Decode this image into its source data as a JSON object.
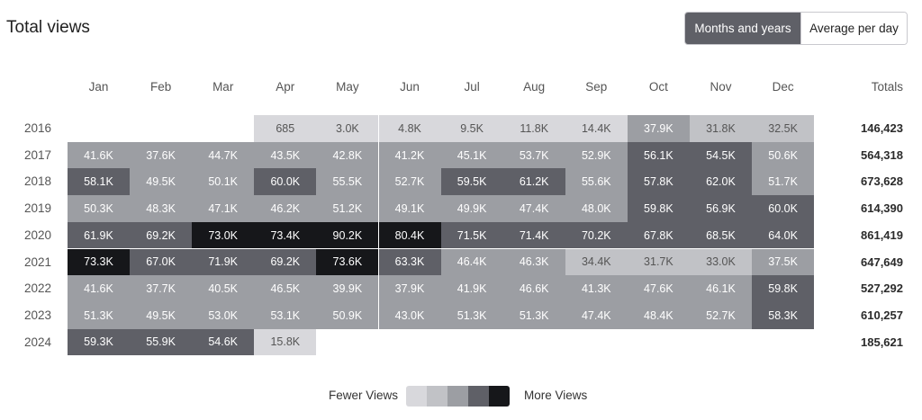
{
  "header": {
    "title": "Total views"
  },
  "toggle": {
    "active_label": "Months and years",
    "inactive_label": "Average per day"
  },
  "legend": {
    "fewer_label": "Fewer Views",
    "more_label": "More Views",
    "colors": [
      "#d8d8dc",
      "#c1c2c6",
      "#9c9ea3",
      "#5f6067",
      "#16171a"
    ]
  },
  "chart_data": {
    "type": "heatmap",
    "title": "Total views",
    "columns": [
      "Jan",
      "Feb",
      "Mar",
      "Apr",
      "May",
      "Jun",
      "Jul",
      "Aug",
      "Sep",
      "Oct",
      "Nov",
      "Dec"
    ],
    "totals_label": "Totals",
    "rows": [
      {
        "year": "2016",
        "values": [
          null,
          null,
          null,
          "685",
          "3.0K",
          "4.8K",
          "9.5K",
          "11.8K",
          "14.4K",
          "37.9K",
          "31.8K",
          "32.5K"
        ],
        "levels": [
          null,
          null,
          null,
          0,
          0,
          0,
          0,
          0,
          0,
          2,
          1,
          1
        ],
        "total": "146,423"
      },
      {
        "year": "2017",
        "values": [
          "41.6K",
          "37.6K",
          "44.7K",
          "43.5K",
          "42.8K",
          "41.2K",
          "45.1K",
          "53.7K",
          "52.9K",
          "56.1K",
          "54.5K",
          "50.6K"
        ],
        "levels": [
          2,
          2,
          2,
          2,
          2,
          2,
          2,
          2,
          2,
          3,
          3,
          2
        ],
        "total": "564,318"
      },
      {
        "year": "2018",
        "values": [
          "58.1K",
          "49.5K",
          "50.1K",
          "60.0K",
          "55.5K",
          "52.7K",
          "59.5K",
          "61.2K",
          "55.6K",
          "57.8K",
          "62.0K",
          "51.7K"
        ],
        "levels": [
          3,
          2,
          2,
          3,
          2,
          2,
          3,
          3,
          2,
          3,
          3,
          2
        ],
        "total": "673,628"
      },
      {
        "year": "2019",
        "values": [
          "50.3K",
          "48.3K",
          "47.1K",
          "46.2K",
          "51.2K",
          "49.1K",
          "49.9K",
          "47.4K",
          "48.0K",
          "59.8K",
          "56.9K",
          "60.0K"
        ],
        "levels": [
          2,
          2,
          2,
          2,
          2,
          2,
          2,
          2,
          2,
          3,
          3,
          3
        ],
        "total": "614,390"
      },
      {
        "year": "2020",
        "values": [
          "61.9K",
          "69.2K",
          "73.0K",
          "73.4K",
          "90.2K",
          "80.4K",
          "71.5K",
          "71.4K",
          "70.2K",
          "67.8K",
          "68.5K",
          "64.0K"
        ],
        "levels": [
          3,
          3,
          4,
          4,
          4,
          4,
          3,
          3,
          3,
          3,
          3,
          3
        ],
        "total": "861,419"
      },
      {
        "year": "2021",
        "values": [
          "73.3K",
          "67.0K",
          "71.9K",
          "69.2K",
          "73.6K",
          "63.3K",
          "46.4K",
          "46.3K",
          "34.4K",
          "31.7K",
          "33.0K",
          "37.5K"
        ],
        "levels": [
          4,
          3,
          3,
          3,
          4,
          3,
          2,
          2,
          1,
          1,
          1,
          2
        ],
        "total": "647,649"
      },
      {
        "year": "2022",
        "values": [
          "41.6K",
          "37.7K",
          "40.5K",
          "46.5K",
          "39.9K",
          "37.9K",
          "41.9K",
          "46.6K",
          "41.3K",
          "47.6K",
          "46.1K",
          "59.8K"
        ],
        "levels": [
          2,
          2,
          2,
          2,
          2,
          2,
          2,
          2,
          2,
          2,
          2,
          3
        ],
        "total": "527,292"
      },
      {
        "year": "2023",
        "values": [
          "51.3K",
          "49.5K",
          "53.0K",
          "53.1K",
          "50.9K",
          "43.0K",
          "51.3K",
          "51.3K",
          "47.4K",
          "48.4K",
          "52.7K",
          "58.3K"
        ],
        "levels": [
          2,
          2,
          2,
          2,
          2,
          2,
          2,
          2,
          2,
          2,
          2,
          3
        ],
        "total": "610,257"
      },
      {
        "year": "2024",
        "values": [
          "59.3K",
          "55.9K",
          "54.6K",
          "15.8K",
          null,
          null,
          null,
          null,
          null,
          null,
          null,
          null
        ],
        "levels": [
          3,
          3,
          3,
          0,
          null,
          null,
          null,
          null,
          null,
          null,
          null,
          null
        ],
        "total": "185,621"
      }
    ]
  }
}
